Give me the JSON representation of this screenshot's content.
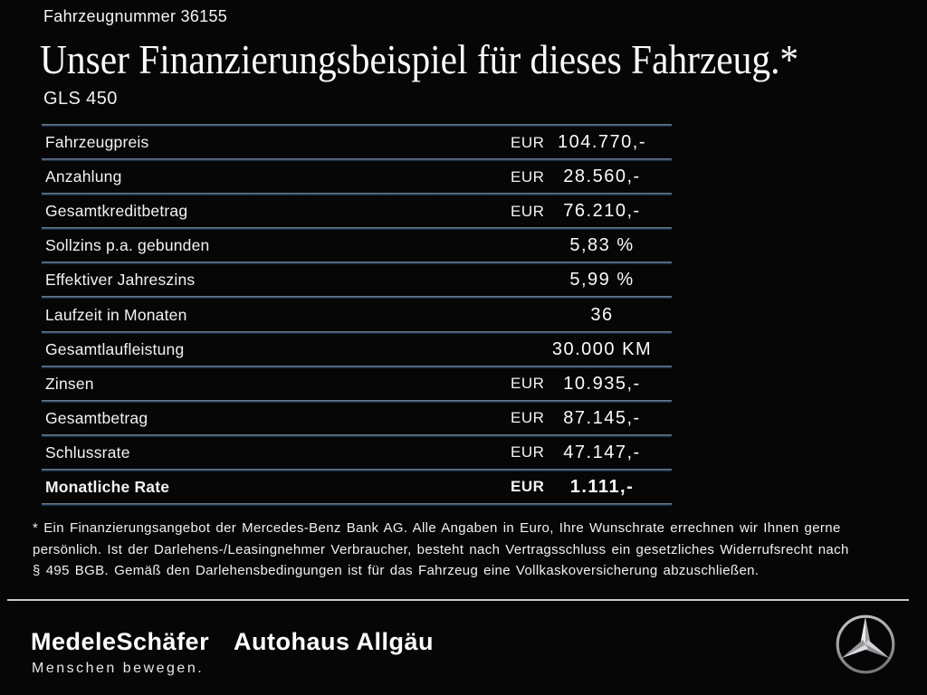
{
  "header": {
    "vehicle_number": "Fahrzeugnummer 36155",
    "title": "Unser Finanzierungsbeispiel für dieses Fahrzeug.*",
    "model": "GLS 450"
  },
  "financing_table": {
    "rows": [
      {
        "label": "Fahrzeugpreis",
        "currency": "EUR",
        "value": "104.770,-",
        "bold": false
      },
      {
        "label": "Anzahlung",
        "currency": "EUR",
        "value": "28.560,-",
        "bold": false
      },
      {
        "label": "Gesamtkreditbetrag",
        "currency": "EUR",
        "value": "76.210,-",
        "bold": false
      },
      {
        "label": "Sollzins p.a. gebunden",
        "currency": "",
        "value": "5,83 %",
        "bold": false
      },
      {
        "label": "Effektiver Jahreszins",
        "currency": "",
        "value": "5,99 %",
        "bold": false
      },
      {
        "label": "Laufzeit in Monaten",
        "currency": "",
        "value": "36",
        "bold": false
      },
      {
        "label": "Gesamtlaufleistung",
        "currency": "",
        "value": "30.000 KM",
        "bold": false
      },
      {
        "label": "Zinsen",
        "currency": "EUR",
        "value": "10.935,-",
        "bold": false
      },
      {
        "label": "Gesamtbetrag",
        "currency": "EUR",
        "value": "87.145,-",
        "bold": false
      },
      {
        "label": "Schlussrate",
        "currency": "EUR",
        "value": "47.147,-",
        "bold": false
      },
      {
        "label": "Monatliche Rate",
        "currency": "EUR",
        "value": "1.111,-",
        "bold": true
      }
    ]
  },
  "footnote": {
    "lines": [
      "* Ein Finanzierungsangebot der Mercedes-Benz Bank AG. Alle Angaben in Euro, Ihre Wunschrate errechnen wir Ihnen gerne",
      "persönlich. Ist der Darlehens-/Leasingnehmer Verbraucher, besteht nach Vertragsschluss ein gesetzliches Widerrufsrecht nach",
      "§ 495 BGB. Gemäß den Darlehensbedingungen ist für das Fahrzeug eine Vollkaskoversicherung abzuschließen."
    ]
  },
  "footer": {
    "dealer_primary": "MedeleSchäfer",
    "dealer_secondary": "Autohaus Allgäu",
    "tagline": "Menschen bewegen.",
    "brand_logo": "mercedes-benz-star-icon"
  },
  "colors": {
    "background": "#060606",
    "text": "#f2f2f2",
    "row_line_top": "#8a8e93",
    "row_line_blue": "#3b5878",
    "footer_separator": "#c9c9c9"
  }
}
